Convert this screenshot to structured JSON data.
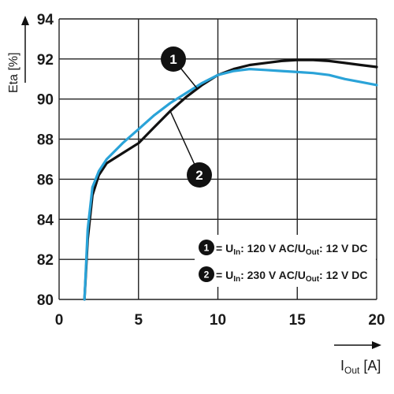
{
  "chart_data": {
    "type": "line",
    "xlabel_main": "I",
    "xlabel_sub": "Out",
    "xlabel_unit": " [A]",
    "ylabel": "Eta [%]",
    "xlim": [
      0,
      20
    ],
    "ylim": [
      80,
      94
    ],
    "xticks": [
      0,
      5,
      10,
      15,
      20
    ],
    "yticks": [
      80,
      82,
      84,
      86,
      88,
      90,
      92,
      94
    ],
    "grid": true,
    "series": [
      {
        "name": "1",
        "color": "#111111",
        "x": [
          1.6,
          1.8,
          2.1,
          2.5,
          3.0,
          4.0,
          5.0,
          6.0,
          7.0,
          8.0,
          9.0,
          10.0,
          11.0,
          12.0,
          13.0,
          14.0,
          15.0,
          16.0,
          17.0,
          18.0,
          19.0,
          20.0
        ],
        "y": [
          80.0,
          83.0,
          85.2,
          86.2,
          86.8,
          87.3,
          87.8,
          88.6,
          89.4,
          90.1,
          90.7,
          91.2,
          91.5,
          91.7,
          91.8,
          91.9,
          91.95,
          91.95,
          91.9,
          91.8,
          91.7,
          91.6
        ]
      },
      {
        "name": "2",
        "color": "#2aa3d8",
        "x": [
          1.6,
          1.8,
          2.1,
          2.5,
          3.0,
          4.0,
          5.0,
          6.0,
          7.0,
          8.0,
          9.0,
          10.0,
          11.0,
          12.0,
          13.0,
          14.0,
          15.0,
          16.0,
          17.0,
          18.0,
          19.0,
          20.0
        ],
        "y": [
          80.0,
          83.5,
          85.6,
          86.4,
          87.0,
          87.8,
          88.5,
          89.2,
          89.8,
          90.3,
          90.8,
          91.2,
          91.4,
          91.5,
          91.45,
          91.4,
          91.35,
          91.3,
          91.2,
          91.0,
          90.85,
          90.7
        ]
      }
    ],
    "legend": [
      {
        "marker": "1",
        "parts": [
          "= U",
          "In",
          ": 120 V AC/U",
          "Out",
          ": 12 V DC"
        ]
      },
      {
        "marker": "2",
        "parts": [
          "= U",
          "In",
          ": 230 V AC/U",
          "Out",
          ": 12 V DC"
        ]
      }
    ],
    "callouts": [
      {
        "marker": "1",
        "target_series": 0,
        "at_x": 8.7
      },
      {
        "marker": "2",
        "target_series": 0,
        "at_x": 7.0
      }
    ]
  }
}
